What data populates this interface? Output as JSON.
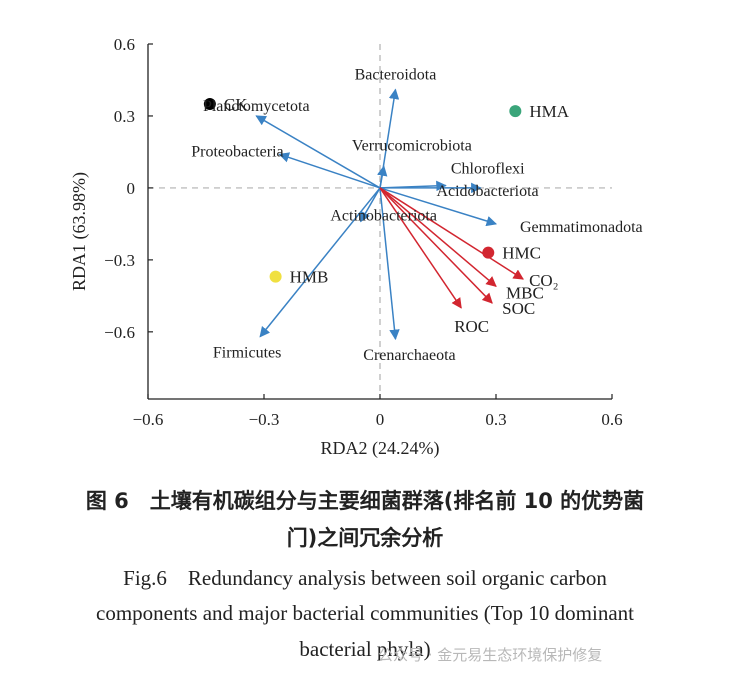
{
  "chart_data": {
    "type": "scatter",
    "title": "",
    "xlabel": "RDA2 (24.24%)",
    "ylabel": "RDA1 (63.98%)",
    "xlim": [
      -0.6,
      0.6
    ],
    "ylim": [
      -0.88,
      0.6
    ],
    "x_ticks": [
      -0.6,
      -0.3,
      0,
      0.3,
      0.6
    ],
    "y_ticks": [
      0.6,
      0.3,
      0,
      -0.3,
      -0.6
    ],
    "x_tick_labels": [
      "−0.6",
      "−0.3",
      "0",
      "0.3",
      "0.6"
    ],
    "y_tick_labels": [
      "0.6",
      "0.3",
      "0",
      "−0.3",
      "−0.6"
    ],
    "grid": false,
    "reference_lines": [
      0,
      0
    ],
    "points": [
      {
        "label": "CK",
        "x": -0.44,
        "y": 0.35,
        "color": "#000000"
      },
      {
        "label": "HMA",
        "x": 0.35,
        "y": 0.32,
        "color": "#3aa57a"
      },
      {
        "label": "HMC",
        "x": 0.28,
        "y": -0.27,
        "color": "#d22630"
      },
      {
        "label": "HMB",
        "x": -0.27,
        "y": -0.37,
        "color": "#f0e040"
      }
    ],
    "bacteria_vectors": [
      {
        "label": "Bacteroidota",
        "x": 0.04,
        "y": 0.41
      },
      {
        "label": "Planctomycetota",
        "x": -0.32,
        "y": 0.3
      },
      {
        "label": "Proteobacteria",
        "x": -0.26,
        "y": 0.14
      },
      {
        "label": "Verrucomicrobiota",
        "x": 0.01,
        "y": 0.09
      },
      {
        "label": "Chloroflexi",
        "x": 0.17,
        "y": 0.01
      },
      {
        "label": "Acidobacteriota",
        "x": 0.26,
        "y": 0
      },
      {
        "label": "Gemmatimonadota",
        "x": 0.3,
        "y": -0.15
      },
      {
        "label": "Actinobacteriota",
        "x": -0.05,
        "y": -0.14
      },
      {
        "label": "Firmicutes",
        "x": -0.31,
        "y": -0.62
      },
      {
        "label": "Crenarchaeota",
        "x": 0.04,
        "y": -0.63
      }
    ],
    "carbon_vectors": [
      {
        "label": "CO₂",
        "x": 0.37,
        "y": -0.38
      },
      {
        "label": "MBC",
        "x": 0.3,
        "y": -0.41
      },
      {
        "label": "SOC",
        "x": 0.29,
        "y": -0.48
      },
      {
        "label": "ROC",
        "x": 0.21,
        "y": -0.5
      }
    ],
    "vector_colors": {
      "bacteria": "#3a82c4",
      "carbon": "#d22630"
    }
  },
  "caption": {
    "cn_line1": "图 6　土壤有机碳组分与主要细菌群落(排名前 10 的优势菌",
    "cn_line2": "门)之间冗余分析",
    "en_line1": "Fig.6　Redundancy analysis between soil organic carbon",
    "en_line2": "components and major bacterial communities (Top 10 dominant",
    "en_line3": "bacterial phyla)"
  },
  "watermark": "公众号 · 金元易生态环境保护修复"
}
